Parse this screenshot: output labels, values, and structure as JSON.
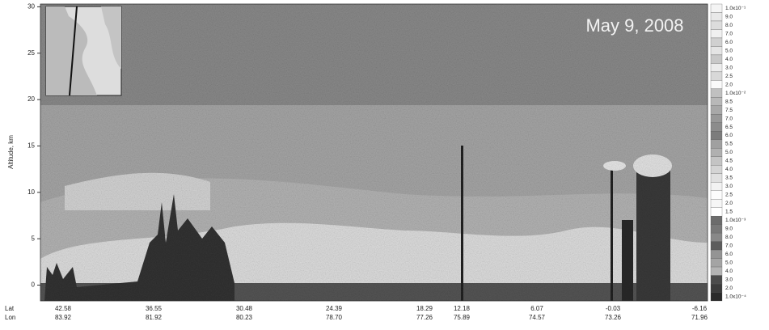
{
  "chart_data": {
    "type": "curtain",
    "title": "May 9, 2008",
    "y_label": "Altitude, km",
    "ylim": [
      -1.7,
      30.3
    ],
    "yticks": [
      0,
      5,
      10,
      15,
      20,
      25,
      30
    ],
    "x_rows": [
      {
        "name": "Lat",
        "values": [
          42.58,
          36.55,
          30.48,
          24.39,
          18.29,
          12.18,
          6.07,
          -0.03,
          -6.16
        ]
      },
      {
        "name": "Lon",
        "values": [
          83.92,
          81.92,
          80.23,
          {
            "value": 78.7,
            "label": "78.70"
          },
          77.26,
          75.89,
          74.57,
          73.26,
          71.96
        ]
      }
    ],
    "colorbar": {
      "labels": [
        "1.0x10⁻¹",
        "9.0",
        "8.0",
        "7.0",
        "6.0",
        "5.0",
        "4.0",
        "3.0",
        "2.5",
        "2.0",
        "1.0x10⁻²",
        "8.5",
        "7.5",
        "7.0",
        "6.5",
        "6.0",
        "5.5",
        "5.0",
        "4.5",
        "4.0",
        "3.5",
        "3.0",
        "2.5",
        "2.0",
        "1.5",
        "1.0x10⁻³",
        "9.0",
        "8.0",
        "7.0",
        "6.0",
        "5.0",
        "4.0",
        "3.0",
        "2.0",
        "1.0x10⁻⁴"
      ],
      "colors": [
        "#f4f4f4",
        "#e8e8e8",
        "#dcdcdc",
        "#f0f0f0",
        "#d0d0d0",
        "#e4e4e4",
        "#c8c8c8",
        "#ececec",
        "#d8d8d8",
        "#fafafa",
        "#c0c0c0",
        "#b8b8b8",
        "#a8a8a8",
        "#989898",
        "#8c8c8c",
        "#7c7c7c",
        "#a0a0a0",
        "#b0b0b0",
        "#c4c4c4",
        "#d4d4d4",
        "#e0e0e0",
        "#f2f2f2",
        "#fcfcfc",
        "#f6f6f6",
        "#ffffff",
        "#6c6c6c",
        "#787878",
        "#888888",
        "#5c5c5c",
        "#949494",
        "#a4a4a4",
        "#b4b4b4",
        "#4c4c4c",
        "#3c3c3c",
        "#2a2a2a"
      ]
    }
  }
}
